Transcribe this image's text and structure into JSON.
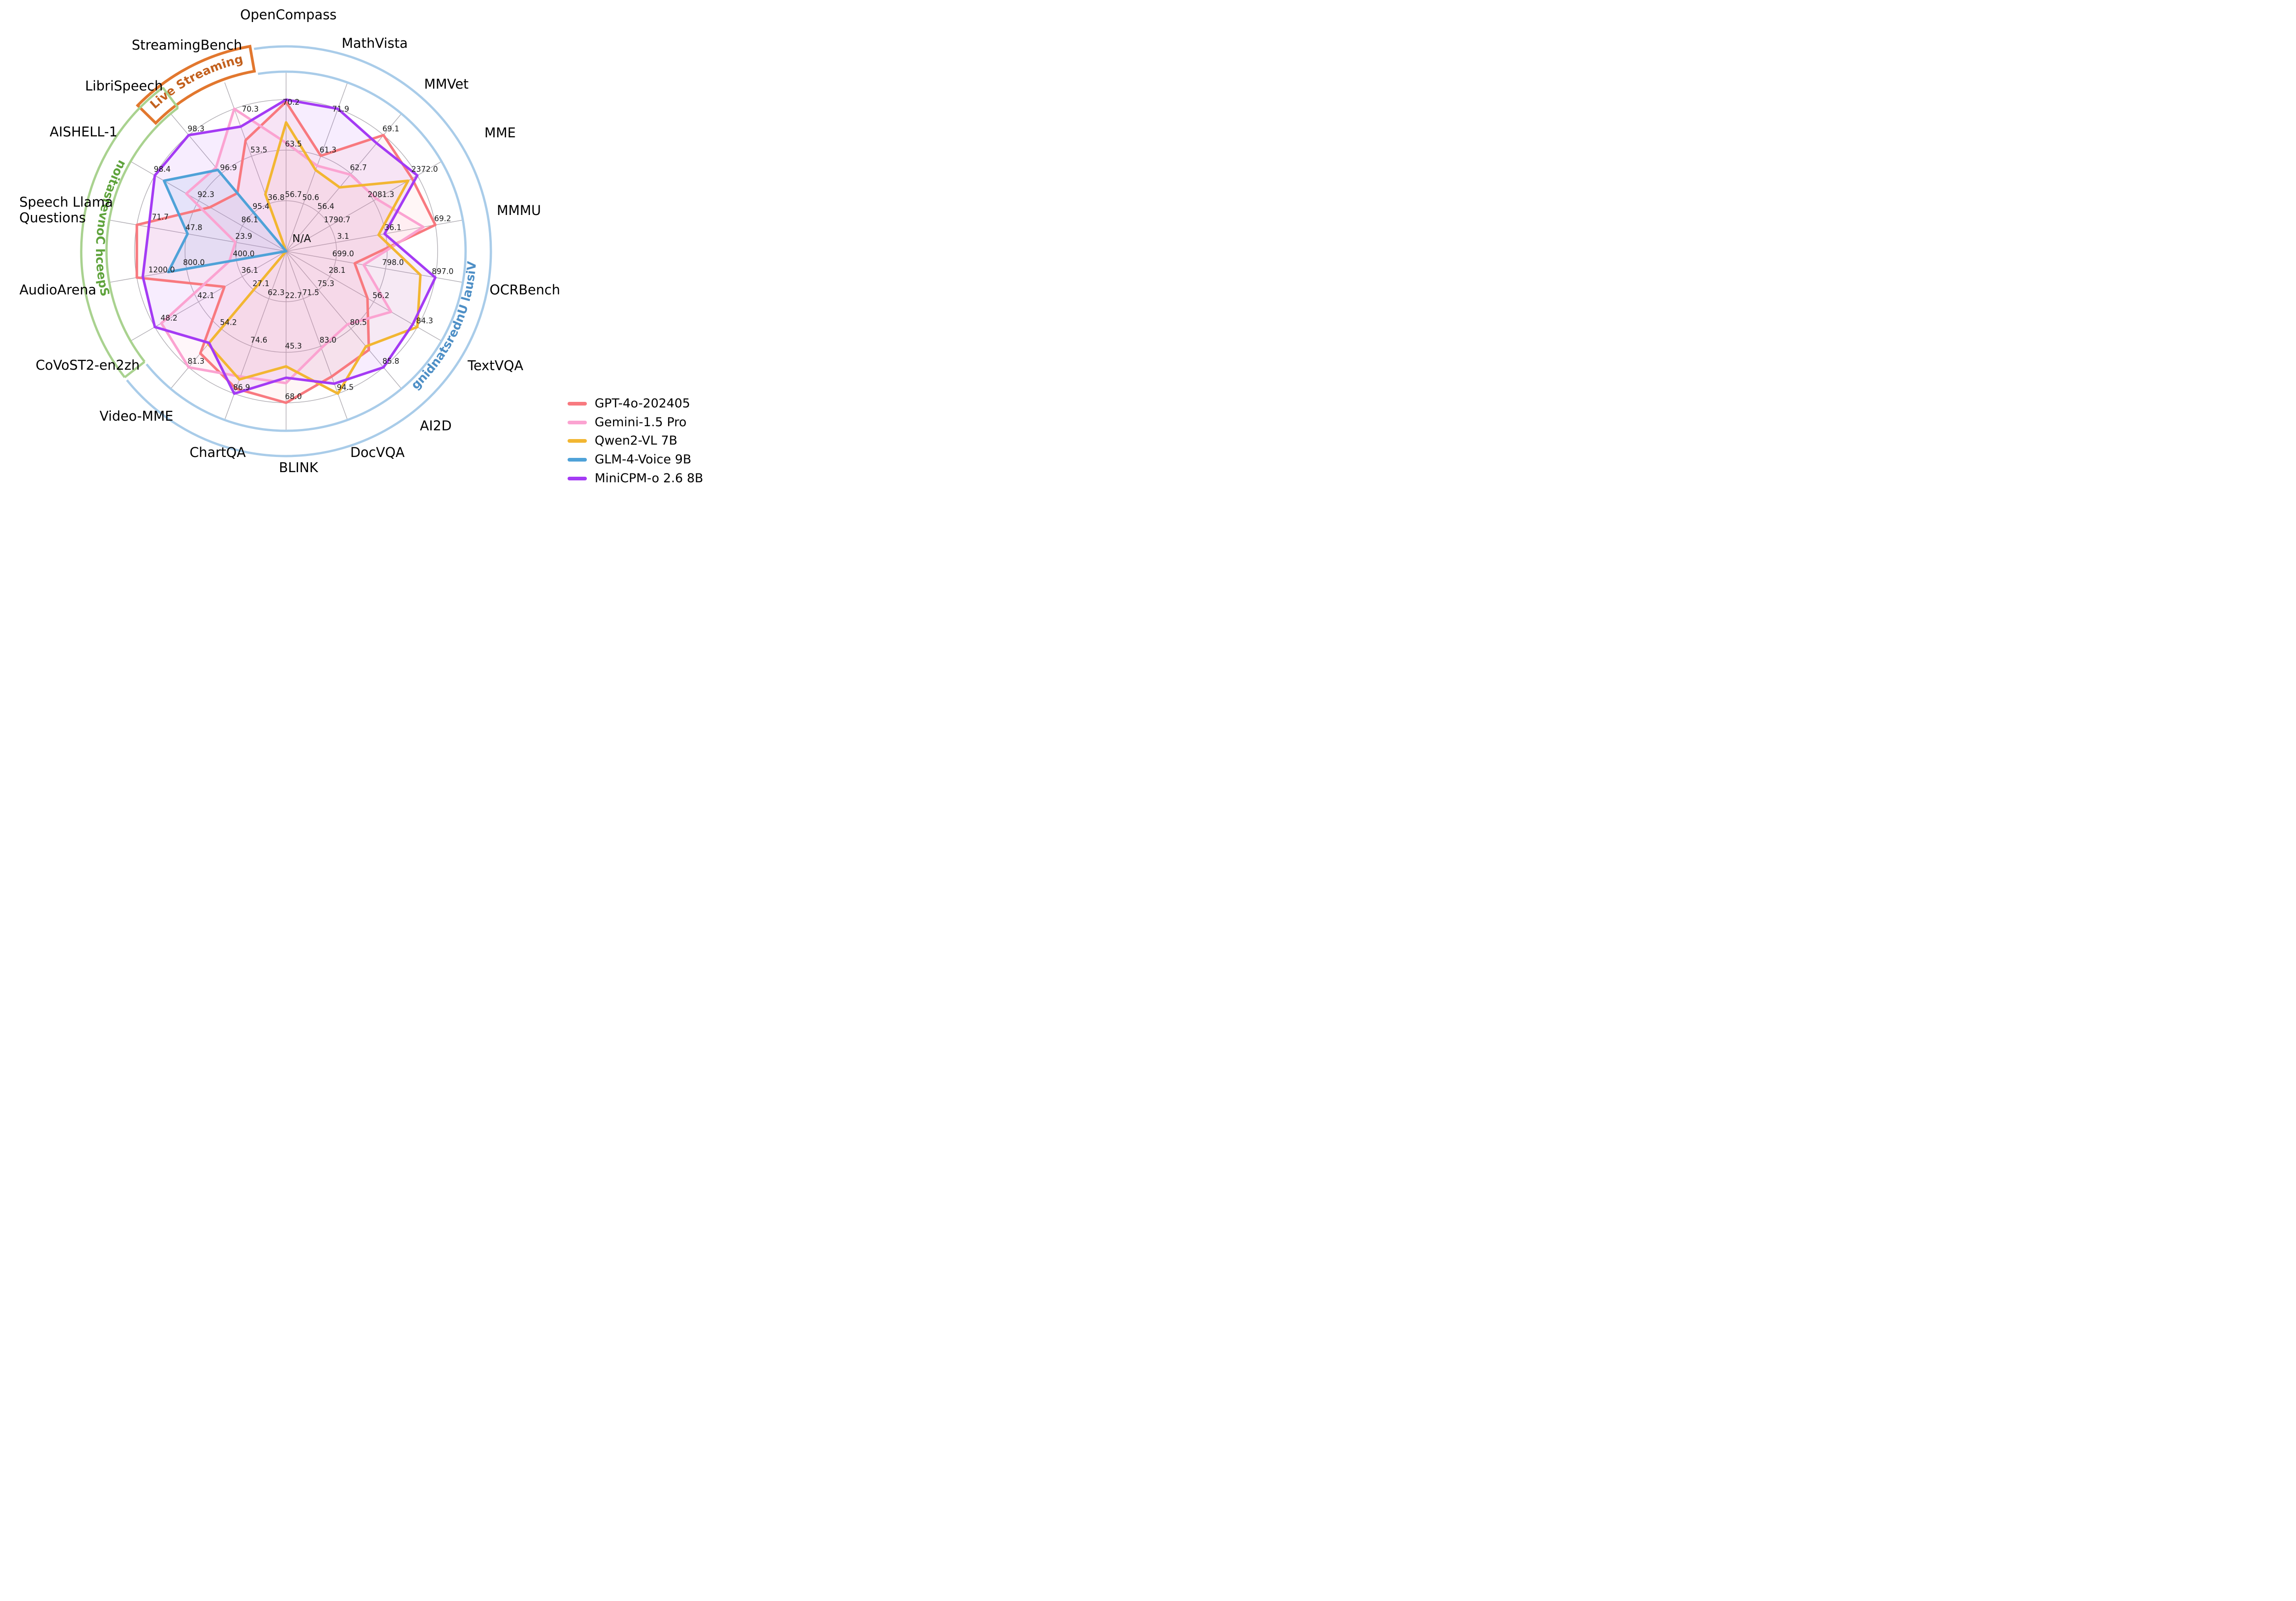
{
  "figure": {
    "background": "#ffffff"
  },
  "legend": [
    {
      "label": "GPT-4o-202405",
      "color": "#F8797F"
    },
    {
      "label": "Gemini-1.5 Pro",
      "color": "#FBA3D1"
    },
    {
      "label": "Qwen2-VL 7B",
      "color": "#F2B632"
    },
    {
      "label": "GLM-4-Voice 9B",
      "color": "#4FA2D8"
    },
    {
      "label": "MiniCPM-o 2.6 8B",
      "color": "#A43BF4"
    }
  ],
  "chart_data": {
    "type": "radar",
    "grid": {
      "rings": 3,
      "ring_fractions": [
        0.333,
        0.667,
        1.0
      ],
      "color": "#b3b0b6"
    },
    "center_label": "N/A",
    "categories": [
      {
        "label": "Live Streaming",
        "band_color": "#E2772E",
        "text_color": "#C3611E",
        "benchmarks": [
          "StreamingBench"
        ]
      },
      {
        "label": "Speech Conversation",
        "band_color": "#A9D28F",
        "text_color": "#5FA33C",
        "benchmarks": [
          "CoVoST2-en2zh",
          "AudioArena",
          "Speech Llama Questions",
          "AISHELL-1",
          "LibriSpeech"
        ]
      },
      {
        "label": "Visual Understanding",
        "band_color": "#A9CCE9",
        "text_color": "#4E8FC6",
        "benchmarks": [
          "OpenCompass",
          "MathVista",
          "MMVet",
          "MME",
          "MMMU",
          "OCRBench",
          "TextVQA",
          "AI2D",
          "DocVQA",
          "BLINK",
          "ChartQA",
          "Video-MME"
        ]
      }
    ],
    "axes": [
      {
        "label": "OpenCompass",
        "angle": 90,
        "category": "Visual Understanding",
        "ticks": [
          "56.7",
          "63.5",
          "70.2"
        ]
      },
      {
        "label": "MathVista",
        "angle": 70,
        "category": "Visual Understanding",
        "ticks": [
          "50.6",
          "61.3",
          "71.9"
        ]
      },
      {
        "label": "MMVet",
        "angle": 50,
        "category": "Visual Understanding",
        "ticks": [
          "56.4",
          "62.7",
          "69.1"
        ]
      },
      {
        "label": "MME",
        "angle": 30,
        "category": "Visual Understanding",
        "ticks": [
          "1790.7",
          "2081.3",
          "2372.0"
        ]
      },
      {
        "label": "MMMU",
        "angle": 10,
        "category": "Visual Understanding",
        "ticks": [
          "3.1",
          "36.1",
          "69.2"
        ]
      },
      {
        "label": "OCRBench",
        "angle": -10,
        "category": "Visual Understanding",
        "ticks": [
          "699.0",
          "798.0",
          "897.0"
        ]
      },
      {
        "label": "TextVQA",
        "angle": -30,
        "category": "Visual Understanding",
        "ticks": [
          "28.1",
          "56.2",
          "84.3"
        ]
      },
      {
        "label": "AI2D",
        "angle": -50,
        "category": "Visual Understanding",
        "ticks": [
          "75.3",
          "80.5",
          "85.8"
        ]
      },
      {
        "label": "DocVQA",
        "angle": -70,
        "category": "Visual Understanding",
        "ticks": [
          "71.5",
          "83.0",
          "94.5"
        ]
      },
      {
        "label": "BLINK",
        "angle": -90,
        "category": "Visual Understanding",
        "ticks": [
          "22.7",
          "45.3",
          "68.0"
        ]
      },
      {
        "label": "ChartQA",
        "angle": -110,
        "category": "Visual Understanding",
        "ticks": [
          "62.3",
          "74.6",
          "86.9"
        ]
      },
      {
        "label": "Video-MME",
        "angle": -130,
        "category": "Visual Understanding",
        "ticks": [
          "27.1",
          "54.2",
          "81.3"
        ]
      },
      {
        "label": "CoVoST2-en2zh",
        "angle": -150,
        "category": "Speech Conversation",
        "ticks": [
          "36.1",
          "42.1",
          "48.2"
        ]
      },
      {
        "label": "AudioArena",
        "angle": -170,
        "category": "Speech Conversation",
        "ticks": [
          "400.0",
          "800.0",
          "1200.0"
        ]
      },
      {
        "label": "Speech Llama Questions",
        "angle": 170,
        "category": "Speech Conversation",
        "ticks": [
          "23.9",
          "47.8",
          "71.7"
        ],
        "label_lines": [
          "Speech Llama",
          "Questions"
        ]
      },
      {
        "label": "AISHELL-1",
        "angle": 150,
        "category": "Speech Conversation",
        "ticks": [
          "86.1",
          "92.3",
          "98.4"
        ]
      },
      {
        "label": "LibriSpeech",
        "angle": 130,
        "category": "Speech Conversation",
        "ticks": [
          "95.4",
          "96.9",
          "98.3"
        ]
      },
      {
        "label": "StreamingBench",
        "angle": 110,
        "category": "Live Streaming",
        "ticks": [
          "36.8",
          "53.5",
          "70.3"
        ]
      }
    ],
    "series": [
      {
        "name": "GPT-4o-202405",
        "color": "#F8797F",
        "fill_opacity": 0.07,
        "values_norm": [
          0.985,
          0.67,
          1.0,
          0.96,
          1.0,
          0.46,
          0.62,
          0.85,
          0.88,
          1.0,
          0.965,
          0.88,
          0.47,
          1.0,
          1.0,
          0.58,
          0.5,
          0.78
        ]
      },
      {
        "name": "Gemini-1.5 Pro",
        "color": "#FBA3D1",
        "fill_opacity": 0.1,
        "values_norm": [
          0.715,
          0.6,
          0.66,
          0.69,
          0.92,
          0.52,
          0.8,
          0.63,
          0.68,
          0.87,
          0.88,
          1.0,
          0.95,
          0.38,
          0.34,
          0.76,
          0.72,
          1.0
        ]
      },
      {
        "name": "Qwen2-VL 7B",
        "color": "#F2B632",
        "fill_opacity": 0.05,
        "values_norm": [
          0.85,
          0.57,
          0.55,
          0.93,
          0.62,
          0.9,
          1.0,
          0.82,
          1.0,
          0.76,
          0.9,
          0.8,
          0,
          0,
          0,
          0,
          0,
          0.4
        ]
      },
      {
        "name": "GLM-4-Voice 9B",
        "color": "#4FA2D8",
        "fill_opacity": 0.11,
        "values_norm": [
          0,
          0,
          0,
          0,
          0,
          0,
          0,
          0,
          0,
          0,
          0,
          0,
          0,
          0.79,
          0.66,
          0.93,
          0.7,
          0
        ]
      },
      {
        "name": "MiniCPM-o 2.6 8B",
        "color": "#A43BF4",
        "fill_opacity": 0.09,
        "values_norm": [
          1.0,
          1.0,
          0.93,
          1.0,
          0.66,
          1.0,
          0.965,
          1.0,
          0.93,
          0.835,
          1.0,
          0.79,
          1.0,
          0.96,
          0.92,
          1.0,
          1.0,
          0.875
        ]
      }
    ]
  }
}
